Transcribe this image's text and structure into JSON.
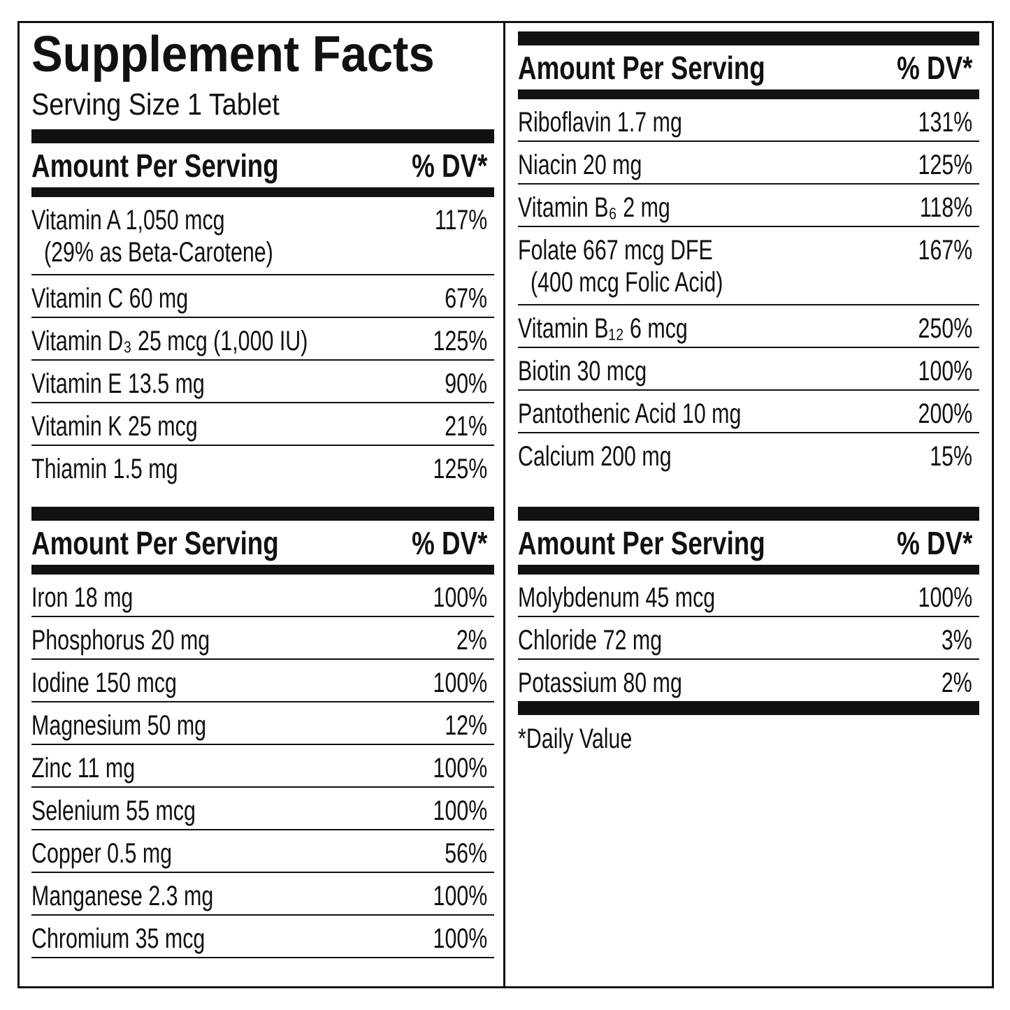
{
  "title": "Supplement Facts",
  "serving_size": "Serving Size 1 Tablet",
  "sections": [
    {
      "header": {
        "amount": "Amount Per Serving",
        "dv": "% DV*"
      },
      "rows": [
        {
          "name": "Vitamin A 1,050 mcg",
          "note": "(29% as Beta-Carotene)",
          "dv": "117%"
        },
        {
          "name": "Vitamin C 60 mg",
          "dv": "67%"
        },
        {
          "name": "Vitamin D₃ 25 mcg (1,000 IU)",
          "dv": "125%"
        },
        {
          "name": "Vitamin E 13.5 mg",
          "dv": "90%"
        },
        {
          "name": "Vitamin K 25 mcg",
          "dv": "21%"
        },
        {
          "name": "Thiamin 1.5 mg",
          "dv": "125%"
        }
      ]
    },
    {
      "header": {
        "amount": "Amount Per Serving",
        "dv": "% DV*"
      },
      "rows": [
        {
          "name": "Iron 18 mg",
          "dv": "100%"
        },
        {
          "name": "Phosphorus 20 mg",
          "dv": "2%"
        },
        {
          "name": "Iodine 150 mcg",
          "dv": "100%"
        },
        {
          "name": "Magnesium 50 mg",
          "dv": "12%"
        },
        {
          "name": "Zinc 11 mg",
          "dv": "100%"
        },
        {
          "name": "Selenium 55 mcg",
          "dv": "100%"
        },
        {
          "name": "Copper 0.5 mg",
          "dv": "56%"
        },
        {
          "name": "Manganese 2.3 mg",
          "dv": "100%"
        },
        {
          "name": "Chromium 35 mcg",
          "dv": "100%"
        }
      ]
    },
    {
      "header": {
        "amount": "Amount Per Serving",
        "dv": "% DV*"
      },
      "rows": [
        {
          "name": "Riboflavin 1.7 mg",
          "dv": "131%"
        },
        {
          "name": "Niacin 20 mg",
          "dv": "125%"
        },
        {
          "name": "Vitamin B₆ 2 mg",
          "dv": "118%"
        },
        {
          "name": "Folate 667 mcg DFE",
          "note": "(400 mcg Folic Acid)",
          "dv": "167%"
        },
        {
          "name": "Vitamin B₁₂ 6 mcg",
          "dv": "250%"
        },
        {
          "name": "Biotin 30 mcg",
          "dv": "100%"
        },
        {
          "name": "Pantothenic Acid 10 mg",
          "dv": "200%"
        },
        {
          "name": "Calcium 200 mg",
          "dv": "15%"
        }
      ]
    },
    {
      "header": {
        "amount": "Amount Per Serving",
        "dv": "% DV*"
      },
      "rows": [
        {
          "name": "Molybdenum 45 mcg",
          "dv": "100%"
        },
        {
          "name": "Chloride 72 mg",
          "dv": "3%"
        },
        {
          "name": "Potassium 80 mg",
          "dv": "2%"
        }
      ]
    }
  ],
  "footnote": "*Daily Value"
}
